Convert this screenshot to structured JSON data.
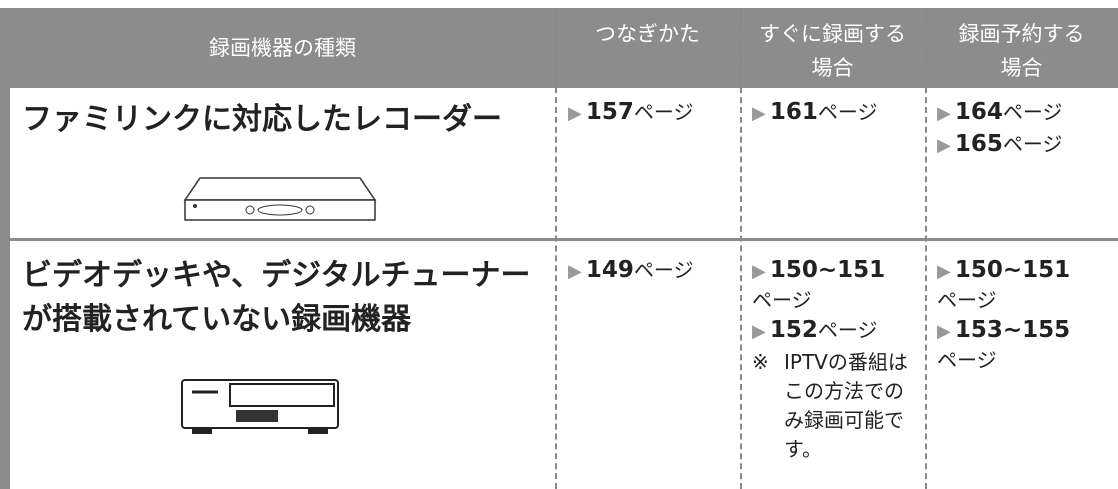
{
  "table": {
    "header": [
      "録画機器の種類",
      "つなぎかた",
      [
        "すぐに録画する",
        "場合"
      ],
      [
        "録画予約する",
        "場合"
      ]
    ],
    "rows": [
      {
        "device": "ファミリンクに対応したレコーダー",
        "cells": [
          [
            {
              "num": "157",
              "unit": "ページ"
            }
          ],
          [
            {
              "num": "161",
              "unit": "ページ"
            }
          ],
          [
            {
              "num": "164",
              "unit": "ページ"
            },
            {
              "num": "165",
              "unit": "ページ"
            }
          ]
        ]
      },
      {
        "device": "ビデオデッキや、デジタルチューナーが搭載されていない録画機器",
        "cells": [
          [
            {
              "num": "149",
              "unit": "ページ"
            }
          ],
          [
            {
              "num": "150~151",
              "unit": "ページ"
            },
            {
              "num": "152",
              "unit": "ページ"
            }
          ],
          [
            {
              "num": "150~151",
              "unit": "ページ"
            },
            {
              "num": "153~155",
              "unit": "ページ"
            }
          ]
        ],
        "note": {
          "mark": "※",
          "text": "IPTVの番組はこの方法でのみ録画可能です。"
        }
      }
    ]
  }
}
